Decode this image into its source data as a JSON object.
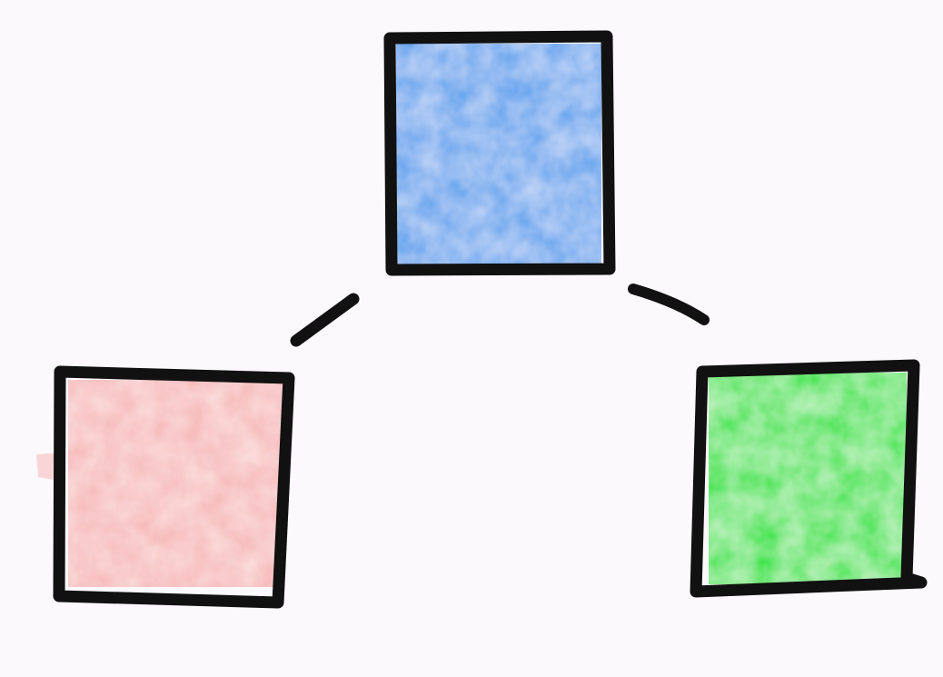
{
  "diagram": {
    "nodes": [
      {
        "id": "top",
        "color": "#5aa1ee",
        "border_color": "#111111"
      },
      {
        "id": "left",
        "color": "#f7b8b8",
        "border_color": "#111111"
      },
      {
        "id": "right",
        "color": "#3be44a",
        "border_color": "#111111"
      }
    ],
    "edges": [
      {
        "from": "top",
        "to": "left",
        "style": "partial"
      },
      {
        "from": "top",
        "to": "right",
        "style": "partial"
      }
    ],
    "paper_color": "#fcf9fc"
  }
}
